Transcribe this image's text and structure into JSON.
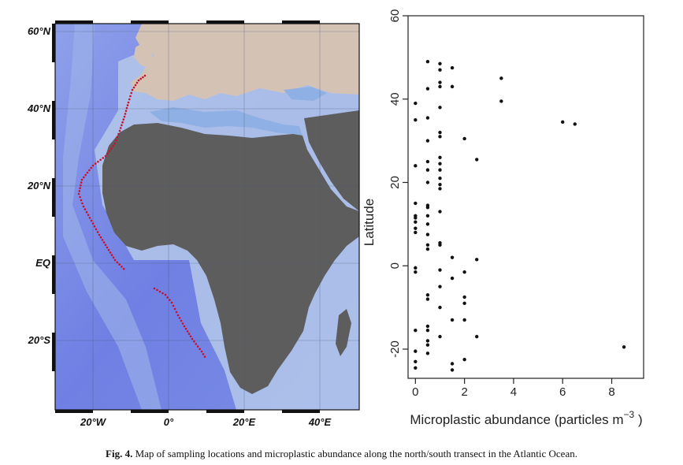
{
  "map": {
    "lat_labels": [
      "60°N",
      "40°N",
      "20°N",
      "EQ",
      "20°S"
    ],
    "lon_labels": [
      "20°W",
      "0°",
      "20°E",
      "40°E"
    ],
    "colors": {
      "ocean_deep": "#6b78e0",
      "ocean_mid": "#8da4ec",
      "shelf": "#b6cde6",
      "land": "#5d5d5d",
      "europe_land": "#d4c3b5",
      "track": "#c8102e"
    }
  },
  "caption": {
    "label": "Fig. 4.",
    "text": " Map of sampling locations and microplastic abundance along the north/south transect in the Atlantic Ocean."
  },
  "chart_data": {
    "type": "scatter",
    "xlabel": "Microplastic abundance (particles m",
    "xlabel_superscript": "−3",
    "xlabel_suffix": " )",
    "ylabel": "Latitude",
    "xlim": [
      -0.3,
      9.3
    ],
    "ylim": [
      -27,
      60
    ],
    "xticks": [
      0,
      2,
      4,
      6,
      8
    ],
    "yticks": [
      -20,
      0,
      20,
      40,
      60
    ],
    "grid": false,
    "series": [
      {
        "points": [
          [
            0,
            39
          ],
          [
            0,
            35
          ],
          [
            0,
            24
          ],
          [
            0,
            15
          ],
          [
            0,
            12
          ],
          [
            0,
            11.5
          ],
          [
            0,
            10.5
          ],
          [
            0,
            9
          ],
          [
            0,
            8
          ],
          [
            0,
            -0.5
          ],
          [
            0,
            -1.5
          ],
          [
            0,
            -15.5
          ],
          [
            0,
            -20.5
          ],
          [
            0,
            -23
          ],
          [
            0,
            -24.5
          ],
          [
            0.5,
            49
          ],
          [
            0.5,
            42.5
          ],
          [
            0.5,
            35.5
          ],
          [
            0.5,
            30
          ],
          [
            0.5,
            25
          ],
          [
            0.5,
            23
          ],
          [
            0.5,
            20
          ],
          [
            0.5,
            14.5
          ],
          [
            0.5,
            14
          ],
          [
            0.5,
            12
          ],
          [
            0.5,
            10
          ],
          [
            0.5,
            7.5
          ],
          [
            0.5,
            5
          ],
          [
            0.5,
            4
          ],
          [
            0.5,
            -7
          ],
          [
            0.5,
            -8
          ],
          [
            0.5,
            -14.5
          ],
          [
            0.5,
            -15.5
          ],
          [
            0.5,
            -18
          ],
          [
            0.5,
            -19
          ],
          [
            0.5,
            -21
          ],
          [
            1,
            48.5
          ],
          [
            1,
            47
          ],
          [
            1,
            44
          ],
          [
            1,
            43
          ],
          [
            1,
            38
          ],
          [
            1,
            32
          ],
          [
            1,
            31
          ],
          [
            1,
            26
          ],
          [
            1,
            24.5
          ],
          [
            1,
            23
          ],
          [
            1,
            21
          ],
          [
            1,
            19.5
          ],
          [
            1,
            18.5
          ],
          [
            1,
            13
          ],
          [
            1,
            5.5
          ],
          [
            1,
            5
          ],
          [
            1,
            -1
          ],
          [
            1,
            -5
          ],
          [
            1,
            -10
          ],
          [
            1,
            -17
          ],
          [
            1.5,
            47.5
          ],
          [
            1.5,
            43
          ],
          [
            1.5,
            2
          ],
          [
            1.5,
            -3
          ],
          [
            1.5,
            -13
          ],
          [
            1.5,
            -23.5
          ],
          [
            1.5,
            -25
          ],
          [
            2,
            30.5
          ],
          [
            2,
            -1.5
          ],
          [
            2,
            -7.5
          ],
          [
            2,
            -9
          ],
          [
            2,
            -13
          ],
          [
            2,
            -22.5
          ],
          [
            2.5,
            25.5
          ],
          [
            2.5,
            1.5
          ],
          [
            2.5,
            -17
          ],
          [
            3.5,
            45
          ],
          [
            3.5,
            39.5
          ],
          [
            6,
            34.5
          ],
          [
            6.5,
            34
          ],
          [
            8.5,
            -19.5
          ]
        ]
      }
    ]
  }
}
